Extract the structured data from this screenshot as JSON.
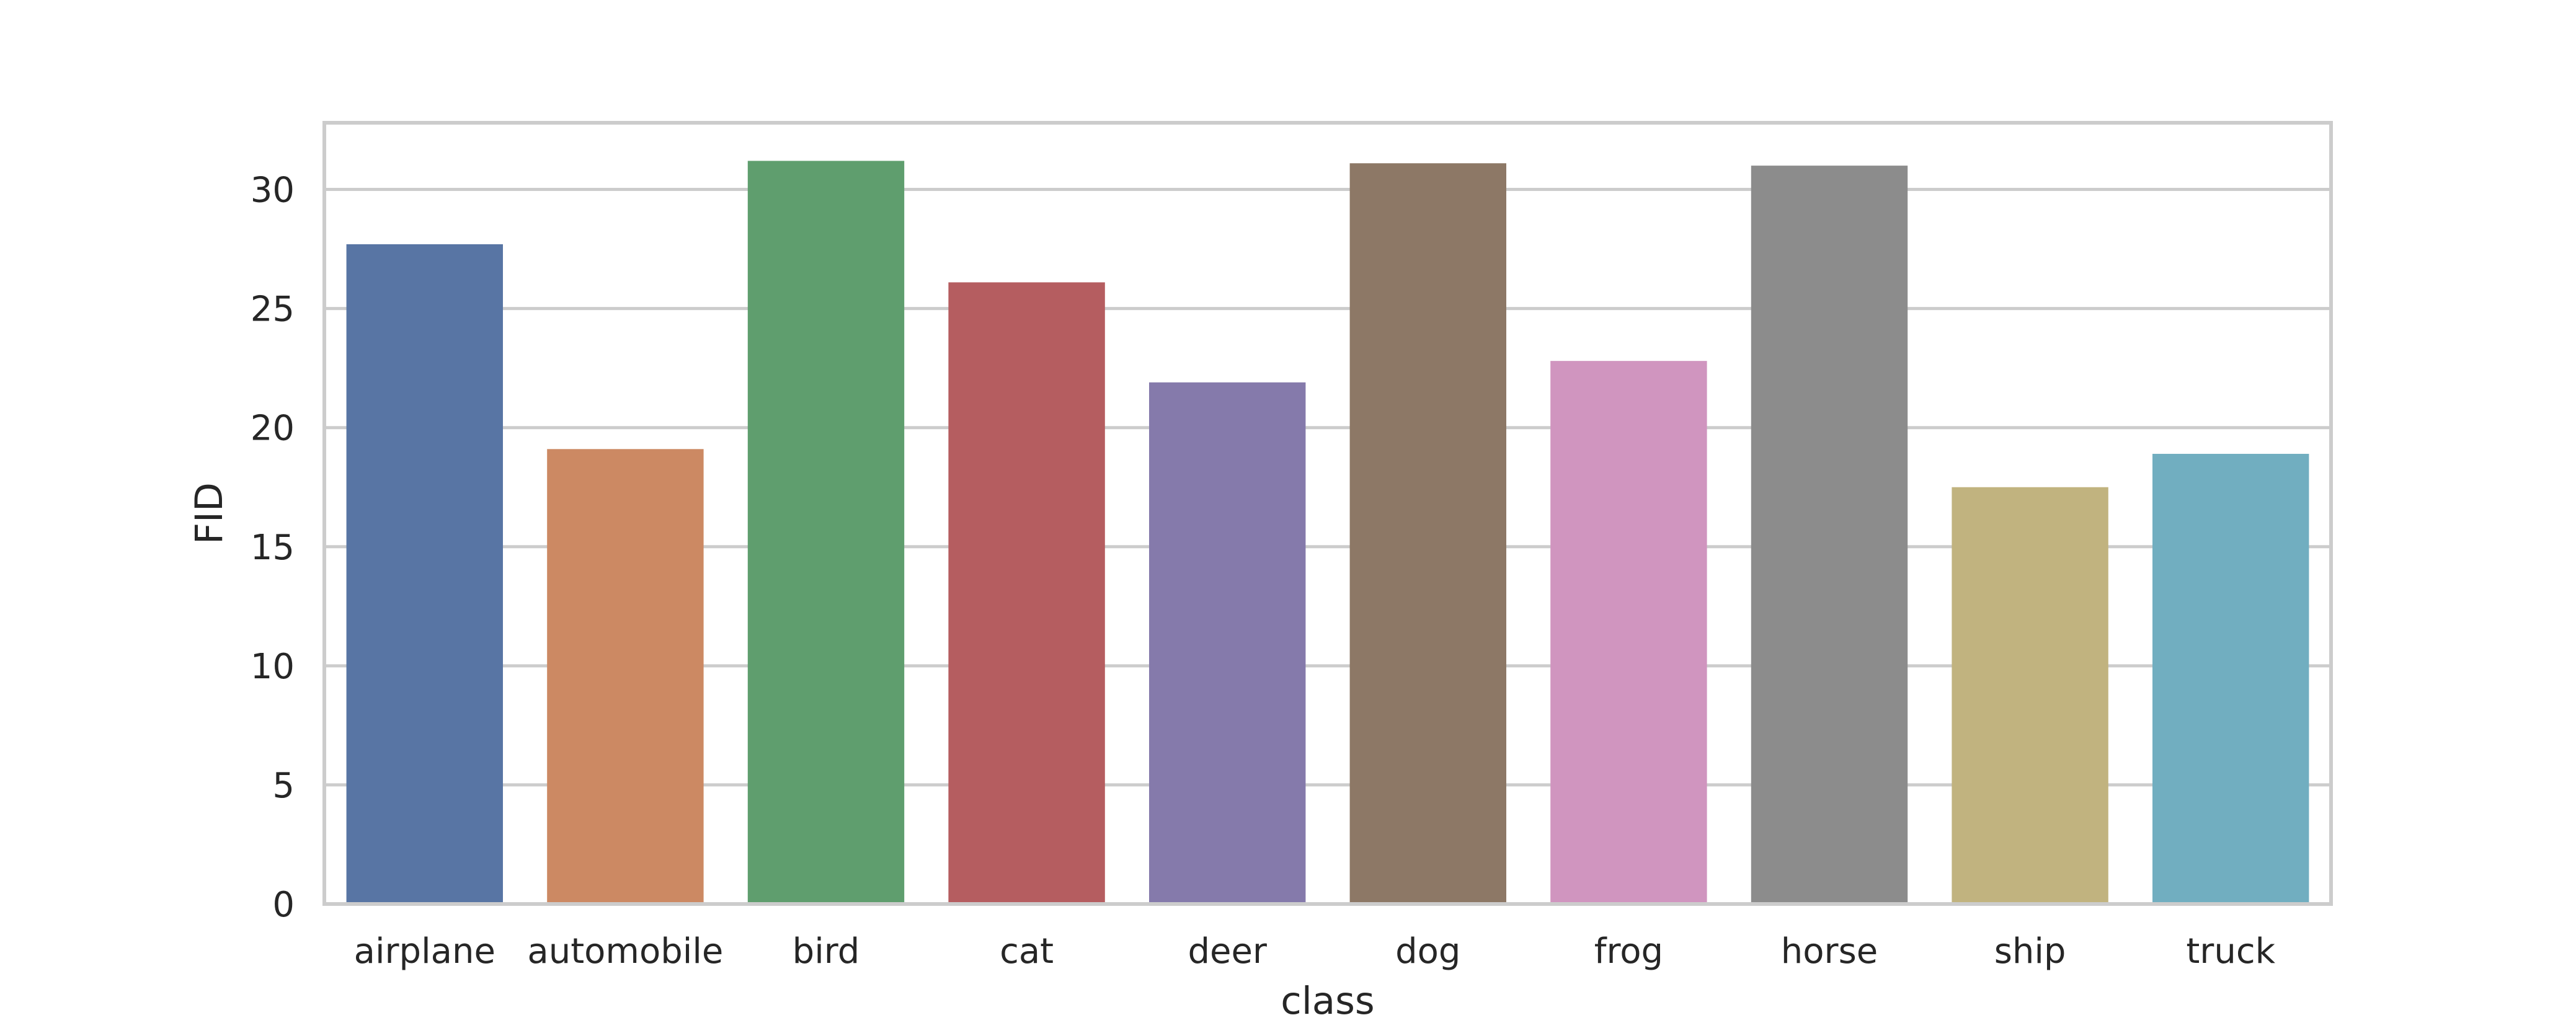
{
  "chart_data": {
    "type": "bar",
    "title": "",
    "xlabel": "class",
    "ylabel": "FID",
    "categories": [
      "airplane",
      "automobile",
      "bird",
      "cat",
      "deer",
      "dog",
      "frog",
      "horse",
      "ship",
      "truck"
    ],
    "values": [
      27.7,
      19.1,
      31.2,
      26.1,
      21.9,
      31.1,
      22.8,
      31.0,
      17.5,
      18.9
    ],
    "colors": [
      "#5875a4",
      "#cc8963",
      "#5f9e6e",
      "#b55d60",
      "#857aab",
      "#8d7866",
      "#d095bf",
      "#8c8c8c",
      "#c1b37f",
      "#71aec0"
    ],
    "ylim": [
      0,
      32.8
    ],
    "yticks": [
      0,
      5,
      10,
      15,
      20,
      25,
      30
    ],
    "grid": "horizontal",
    "background": "#ffffff",
    "grid_color": "#cccccc",
    "spine_color": "#cccccc",
    "text_color": "#262626"
  }
}
